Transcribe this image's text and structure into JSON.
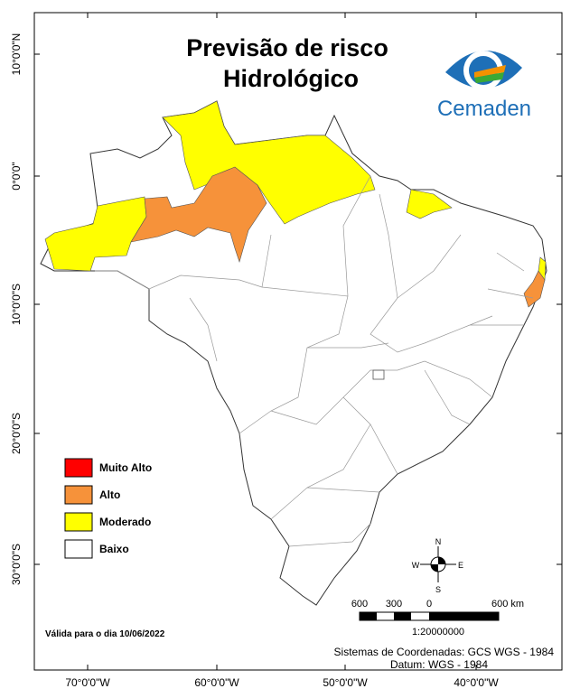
{
  "title": [
    "Previsão de risco",
    "Hidrológico"
  ],
  "logo": "Cemaden",
  "graticule": {
    "lat": [
      "10°0'0\"N",
      "0°0'0\"",
      "10°0'0\"S",
      "20°0'0\"S",
      "30°0'0\"S"
    ],
    "lon": [
      "70°0'0\"W",
      "60°0'0\"W",
      "50°0'0\"W",
      "40°0'0\"W"
    ]
  },
  "legend": {
    "items": [
      {
        "label": "Muito Alto",
        "color": "#ff0000"
      },
      {
        "label": "Alto",
        "color": "#f6923a"
      },
      {
        "label": "Moderado",
        "color": "#ffff00"
      },
      {
        "label": "Baixo",
        "color": "#ffffff"
      }
    ]
  },
  "compass": {
    "n": "N",
    "s": "S",
    "e": "E",
    "w": "W"
  },
  "scale": {
    "labels": [
      "600",
      "300",
      "0",
      "600 km"
    ],
    "ratio": "1:20000000"
  },
  "valid_date": "Válida para o dia 10/06/2022",
  "coordinates": [
    "Sistemas de Coordenadas: GCS WGS - 1984",
    "Datum: WGS - 1984"
  ]
}
